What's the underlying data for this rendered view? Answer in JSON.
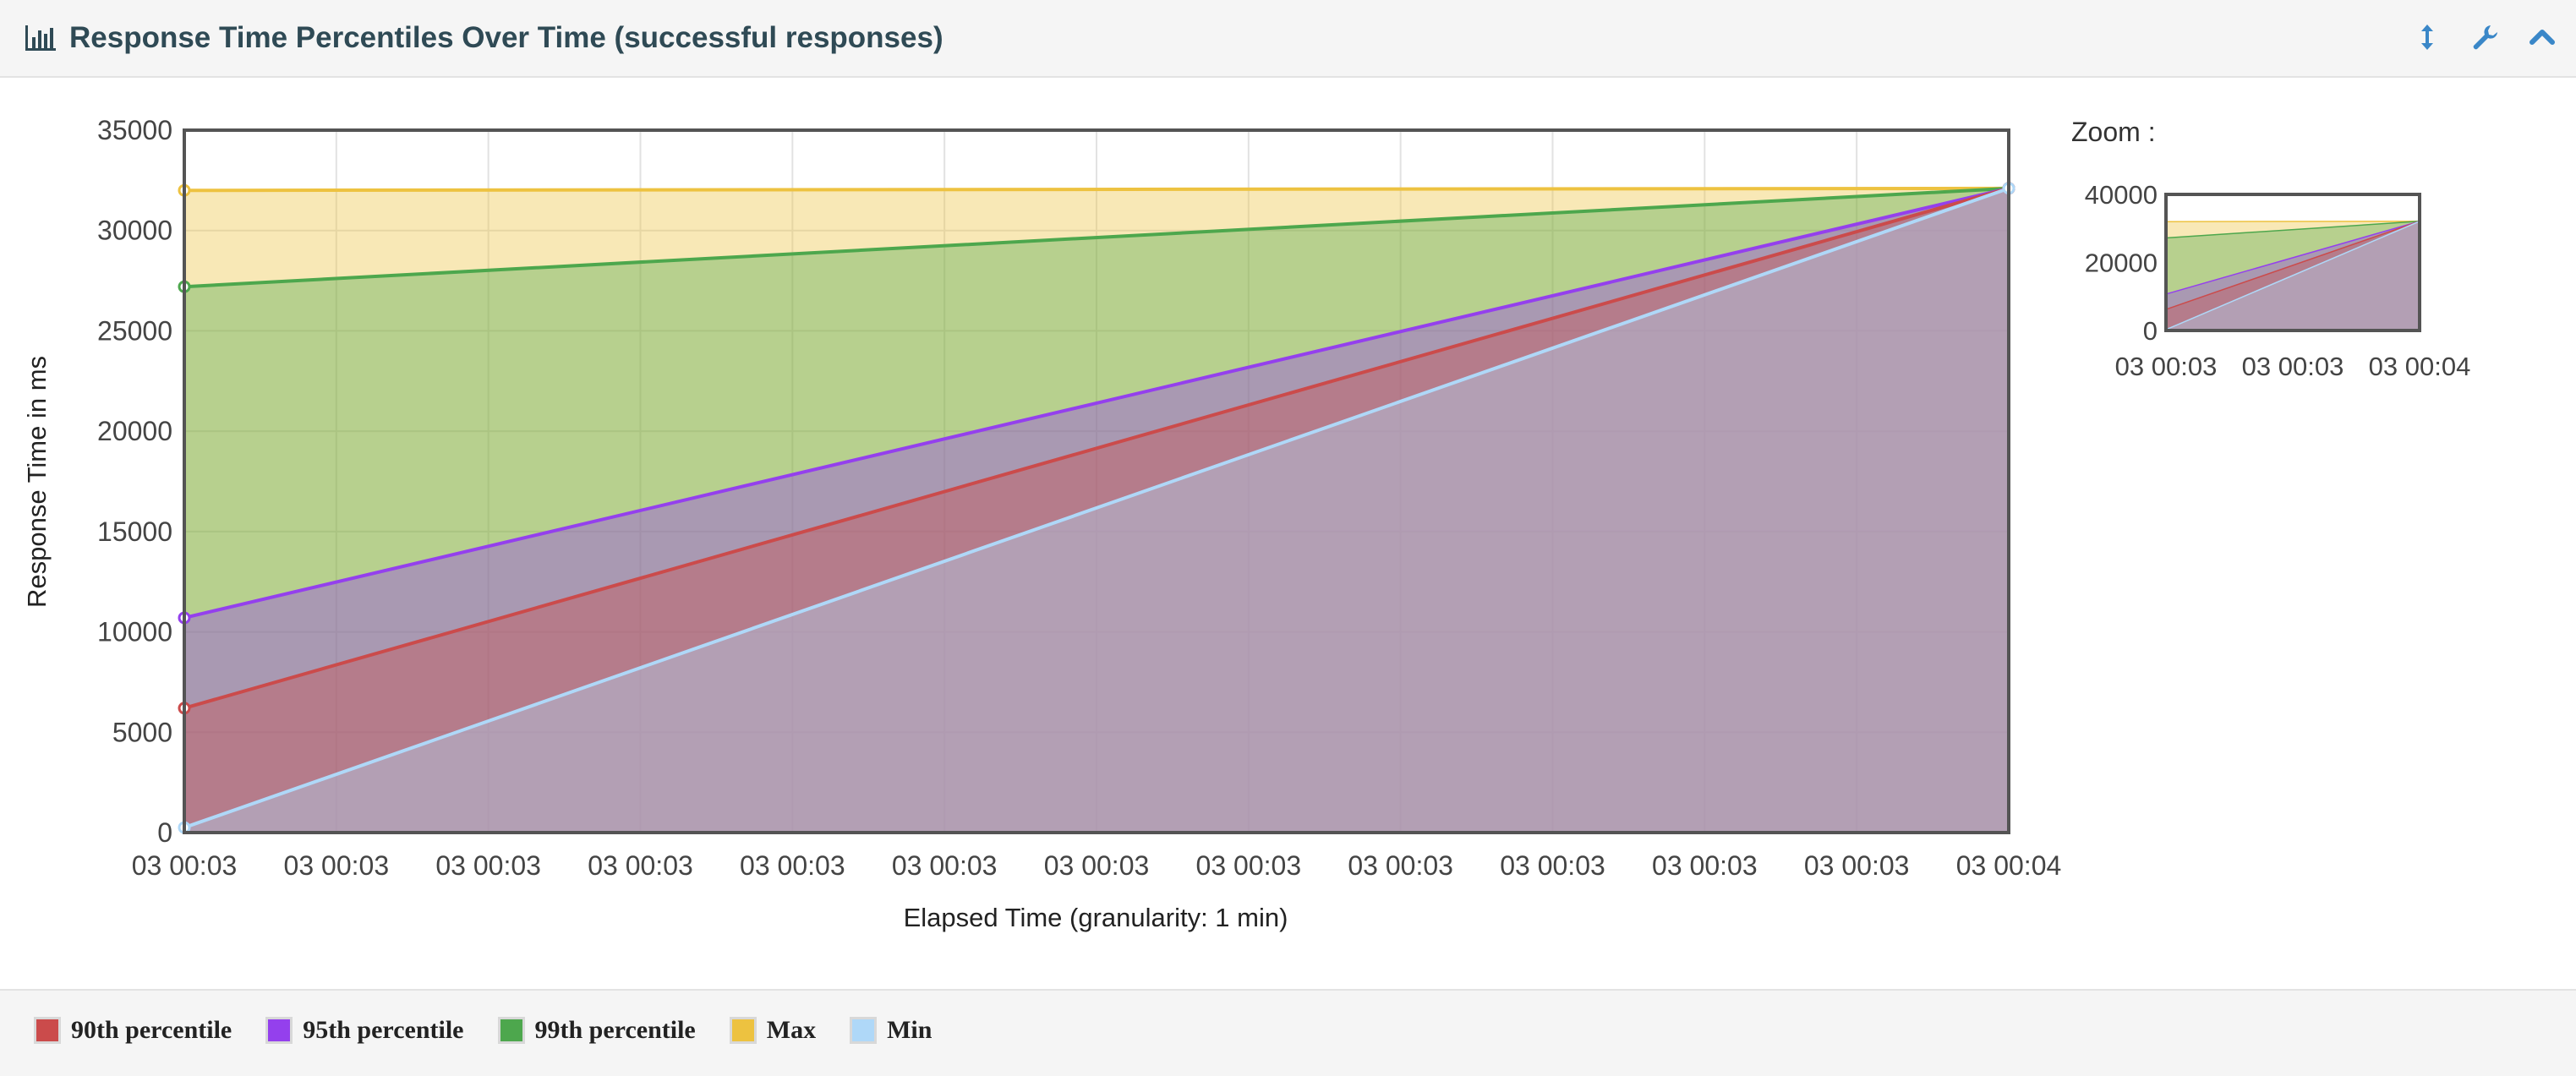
{
  "panel": {
    "title": "Response Time Percentiles Over Time (successful responses)",
    "icons": [
      "bar-chart-icon",
      "resize-vertical-icon",
      "wrench-icon",
      "chevron-up-icon"
    ]
  },
  "zoom": {
    "label": "Zoom :"
  },
  "colors": {
    "p90": "#cb4b4b",
    "p95": "#9440ed",
    "p99": "#4da74d",
    "max": "#edc240",
    "min": "#afd8f8",
    "title": "#2f4a55",
    "tool_icon": "#3a87c8"
  },
  "chart_data": [
    {
      "type": "area",
      "title": "",
      "xlabel": "Elapsed Time (granularity: 1 min)",
      "ylabel": "Response Time in ms",
      "ylim": [
        0,
        35000
      ],
      "yticks": [
        "0",
        "5000",
        "10000",
        "15000",
        "20000",
        "25000",
        "30000",
        "35000"
      ],
      "xticks": [
        "03 00:03",
        "03 00:03",
        "03 00:03",
        "03 00:03",
        "03 00:03",
        "03 00:03",
        "03 00:03",
        "03 00:03",
        "03 00:03",
        "03 00:03",
        "03 00:03",
        "03 00:03",
        "03 00:04"
      ],
      "grid": true,
      "legend_position": "bottom",
      "series": [
        {
          "name": "Max",
          "key": "max",
          "values": [
            32000,
            32100
          ]
        },
        {
          "name": "99th percentile",
          "key": "p99",
          "values": [
            27200,
            32100
          ]
        },
        {
          "name": "95th percentile",
          "key": "p95",
          "values": [
            10700,
            32100
          ]
        },
        {
          "name": "90th percentile",
          "key": "p90",
          "values": [
            6200,
            32100
          ]
        },
        {
          "name": "Min",
          "key": "min",
          "values": [
            250,
            32100
          ]
        }
      ]
    },
    {
      "type": "area",
      "title": "Zoom :",
      "ylim": [
        0,
        40000
      ],
      "yticks": [
        "0",
        "20000",
        "40000"
      ],
      "xticks": [
        "03 00:03",
        "03 00:03",
        "03 00:04"
      ],
      "grid": false,
      "series": [
        {
          "name": "Max",
          "key": "max",
          "values": [
            32000,
            32100
          ]
        },
        {
          "name": "99th percentile",
          "key": "p99",
          "values": [
            27200,
            32100
          ]
        },
        {
          "name": "95th percentile",
          "key": "p95",
          "values": [
            10700,
            32100
          ]
        },
        {
          "name": "90th percentile",
          "key": "p90",
          "values": [
            6200,
            32100
          ]
        },
        {
          "name": "Min",
          "key": "min",
          "values": [
            250,
            32100
          ]
        }
      ]
    }
  ],
  "legend": [
    {
      "label": "90th percentile",
      "key": "p90"
    },
    {
      "label": "95th percentile",
      "key": "p95"
    },
    {
      "label": "99th percentile",
      "key": "p99"
    },
    {
      "label": "Max",
      "key": "max"
    },
    {
      "label": "Min",
      "key": "min"
    }
  ]
}
